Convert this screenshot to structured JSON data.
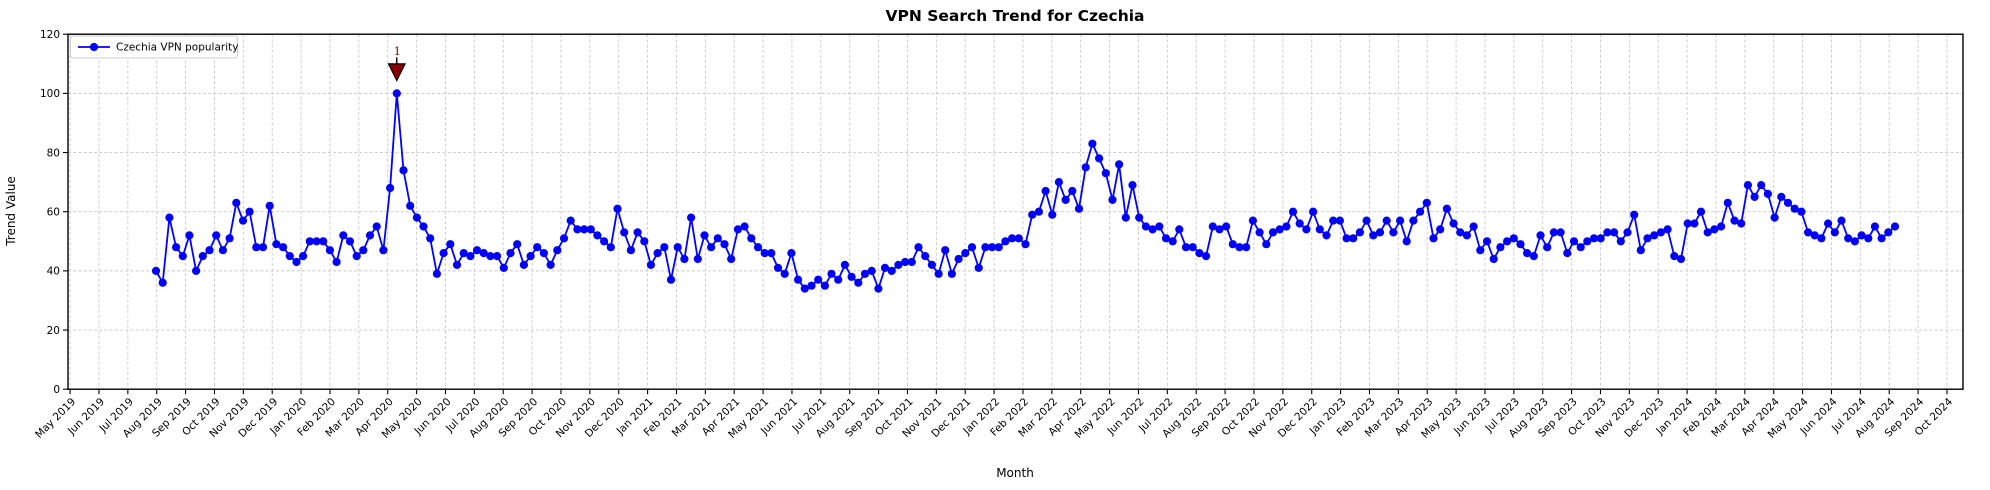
{
  "chart_data": {
    "type": "line",
    "title": "VPN Search Trend for Czechia",
    "xlabel": "Month",
    "ylabel": "Trend Value",
    "ylim": [
      0,
      120
    ],
    "yticks": [
      0,
      20,
      40,
      60,
      80,
      100,
      120
    ],
    "grid": true,
    "legend": {
      "position": "upper-left",
      "entries": [
        "Czechia VPN popularity"
      ]
    },
    "colors": {
      "line": "#0000ff",
      "marker": "#0000ff",
      "grid": "#c8c8c8",
      "annotation": "#8b0000"
    },
    "x_tick_labels": [
      "May 2019",
      "Jun 2019",
      "Jul 2019",
      "Aug 2019",
      "Sep 2019",
      "Oct 2019",
      "Nov 2019",
      "Dec 2019",
      "Jan 2020",
      "Feb 2020",
      "Mar 2020",
      "Apr 2020",
      "May 2020",
      "Jun 2020",
      "Jul 2020",
      "Aug 2020",
      "Sep 2020",
      "Oct 2020",
      "Nov 2020",
      "Dec 2020",
      "Jan 2021",
      "Feb 2021",
      "Mar 2021",
      "Apr 2021",
      "May 2021",
      "Jun 2021",
      "Jul 2021",
      "Aug 2021",
      "Sep 2021",
      "Oct 2021",
      "Nov 2021",
      "Dec 2021",
      "Jan 2022",
      "Feb 2022",
      "Mar 2022",
      "Apr 2022",
      "May 2022",
      "Jun 2022",
      "Jul 2022",
      "Aug 2022",
      "Sep 2022",
      "Oct 2022",
      "Nov 2022",
      "Dec 2022",
      "Jan 2023",
      "Feb 2023",
      "Mar 2023",
      "Apr 2023",
      "May 2023",
      "Jun 2023",
      "Jul 2023",
      "Aug 2023",
      "Sep 2023",
      "Oct 2023",
      "Nov 2023",
      "Dec 2023",
      "Jan 2024",
      "Feb 2024",
      "Mar 2024",
      "Apr 2024",
      "May 2024",
      "Jun 2024",
      "Jul 2024",
      "Aug 2024",
      "Sep 2024",
      "Oct 2024"
    ],
    "series": [
      {
        "name": "Czechia VPN popularity",
        "frequency": "weekly",
        "first_point": "Aug 2019",
        "last_point": "Aug 2024",
        "values": [
          40,
          36,
          58,
          48,
          45,
          52,
          40,
          45,
          47,
          52,
          47,
          51,
          63,
          57,
          60,
          48,
          48,
          62,
          49,
          48,
          45,
          43,
          45,
          50,
          50,
          50,
          47,
          43,
          52,
          50,
          45,
          47,
          52,
          55,
          47,
          68,
          100,
          74,
          62,
          58,
          55,
          51,
          39,
          46,
          49,
          42,
          46,
          45,
          47,
          46,
          45,
          45,
          41,
          46,
          49,
          42,
          45,
          48,
          46,
          42,
          47,
          51,
          57,
          54,
          54,
          54,
          52,
          50,
          48,
          61,
          53,
          47,
          53,
          50,
          42,
          46,
          48,
          37,
          48,
          44,
          58,
          44,
          52,
          48,
          51,
          49,
          44,
          54,
          55,
          51,
          48,
          46,
          46,
          41,
          39,
          46,
          37,
          34,
          35,
          37,
          35,
          39,
          37,
          42,
          38,
          36,
          39,
          40,
          34,
          41,
          40,
          42,
          43,
          43,
          48,
          45,
          42,
          39,
          47,
          39,
          44,
          46,
          48,
          41,
          48,
          48,
          48,
          50,
          51,
          51,
          49,
          59,
          60,
          67,
          59,
          70,
          64,
          67,
          61,
          75,
          83,
          78,
          73,
          64,
          76,
          58,
          69,
          58,
          55,
          54,
          55,
          51,
          50,
          54,
          48,
          48,
          46,
          45,
          55,
          54,
          55,
          49,
          48,
          48,
          57,
          53,
          49,
          53,
          54,
          55,
          60,
          56,
          54,
          60,
          54,
          52,
          57,
          57,
          51,
          51,
          53,
          57,
          52,
          53,
          57,
          53,
          57,
          50,
          57,
          60,
          63,
          51,
          54,
          61,
          56,
          53,
          52,
          55,
          47,
          50,
          44,
          48,
          50,
          51,
          49,
          46,
          45,
          52,
          48,
          53,
          53,
          46,
          50,
          48,
          50,
          51,
          51,
          53,
          53,
          50,
          53,
          59,
          47,
          51,
          52,
          53,
          54,
          45,
          44,
          56,
          56,
          60,
          53,
          54,
          55,
          63,
          57,
          56,
          69,
          65,
          69,
          66,
          58,
          65,
          63,
          61,
          60,
          53,
          52,
          51,
          56,
          53,
          57,
          51,
          50,
          52,
          51,
          55,
          51,
          53,
          55
        ]
      }
    ],
    "annotations": [
      {
        "text": "1",
        "series": "Czechia VPN popularity",
        "point_index": 36,
        "value": 100,
        "approx_x": "Apr 2020",
        "marker": "triangle-down",
        "color": "#8b0000"
      }
    ]
  }
}
